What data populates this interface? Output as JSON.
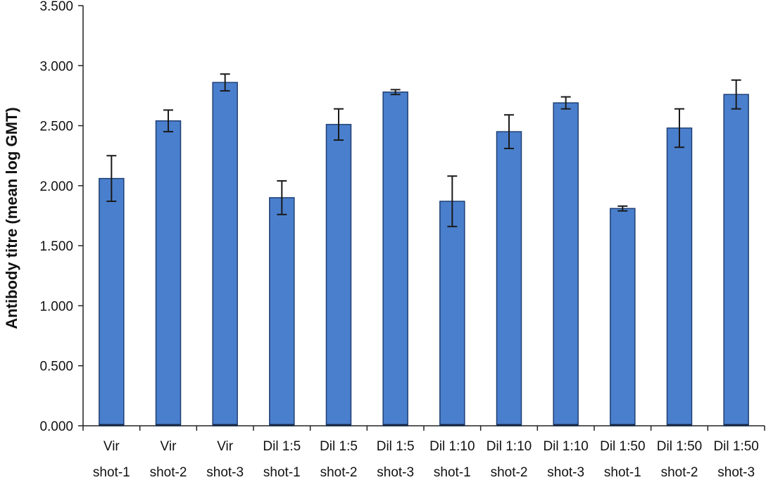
{
  "chart_data": {
    "type": "bar",
    "ylabel": "Antibody titre (mean log GMT)",
    "xlabel": "",
    "ylim": [
      0,
      3.5
    ],
    "yticks": [
      "0.000",
      "0.500",
      "1.000",
      "1.500",
      "2.000",
      "2.500",
      "3.000",
      "3.500"
    ],
    "categories": [
      {
        "line1": "Vir",
        "line2": "shot-1"
      },
      {
        "line1": "Vir",
        "line2": "shot-2"
      },
      {
        "line1": "Vir",
        "line2": "shot-3"
      },
      {
        "line1": "Dil  1:5",
        "line2": "shot-1"
      },
      {
        "line1": "Dil  1:5",
        "line2": "shot-2"
      },
      {
        "line1": "Dil  1:5",
        "line2": "shot-3"
      },
      {
        "line1": "Dil  1:10",
        "line2": "shot-1"
      },
      {
        "line1": "Dil  1:10",
        "line2": "shot-2"
      },
      {
        "line1": "Dil  1:10",
        "line2": "shot-3"
      },
      {
        "line1": "Dil  1:50",
        "line2": "shot-1"
      },
      {
        "line1": "Dil  1:50",
        "line2": "shot-2"
      },
      {
        "line1": "Dil  1:50",
        "line2": "shot-3"
      }
    ],
    "values": [
      2.06,
      2.54,
      2.86,
      1.9,
      2.51,
      2.78,
      1.87,
      2.45,
      2.69,
      1.81,
      2.48,
      2.76
    ],
    "errors": [
      0.19,
      0.09,
      0.07,
      0.14,
      0.13,
      0.02,
      0.21,
      0.14,
      0.05,
      0.02,
      0.16,
      0.12
    ],
    "bar_color": "#4a7fcd",
    "grid": false
  }
}
